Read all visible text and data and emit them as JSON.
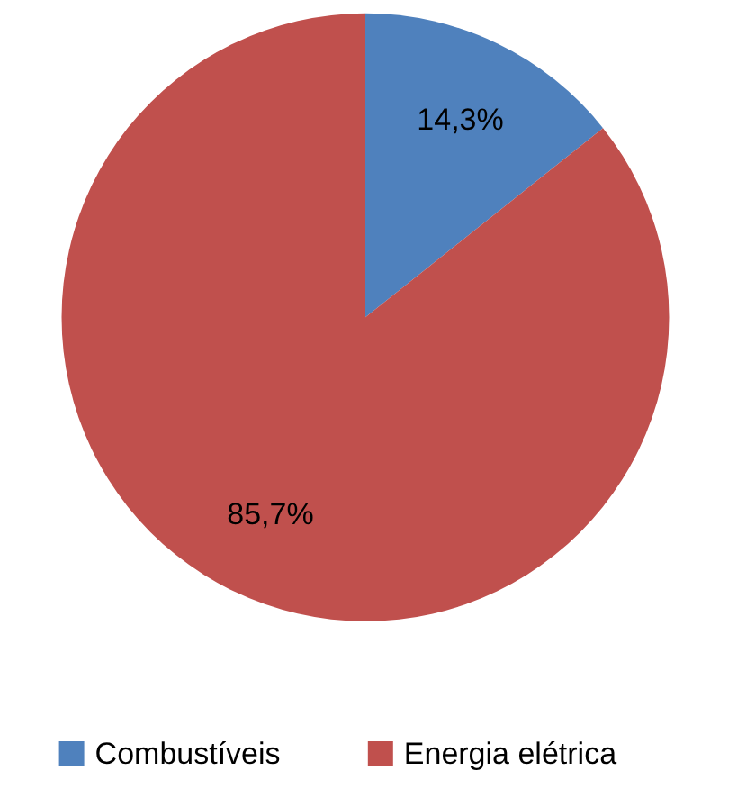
{
  "chart_data": {
    "type": "pie",
    "categories": [
      "Combustíveis",
      "Energia elétrica"
    ],
    "values": [
      14.3,
      85.7
    ],
    "colors": [
      "#4f81bd",
      "#c0504d"
    ],
    "value_labels": [
      "14,3%",
      "85,7%"
    ],
    "legend": "bottom"
  }
}
